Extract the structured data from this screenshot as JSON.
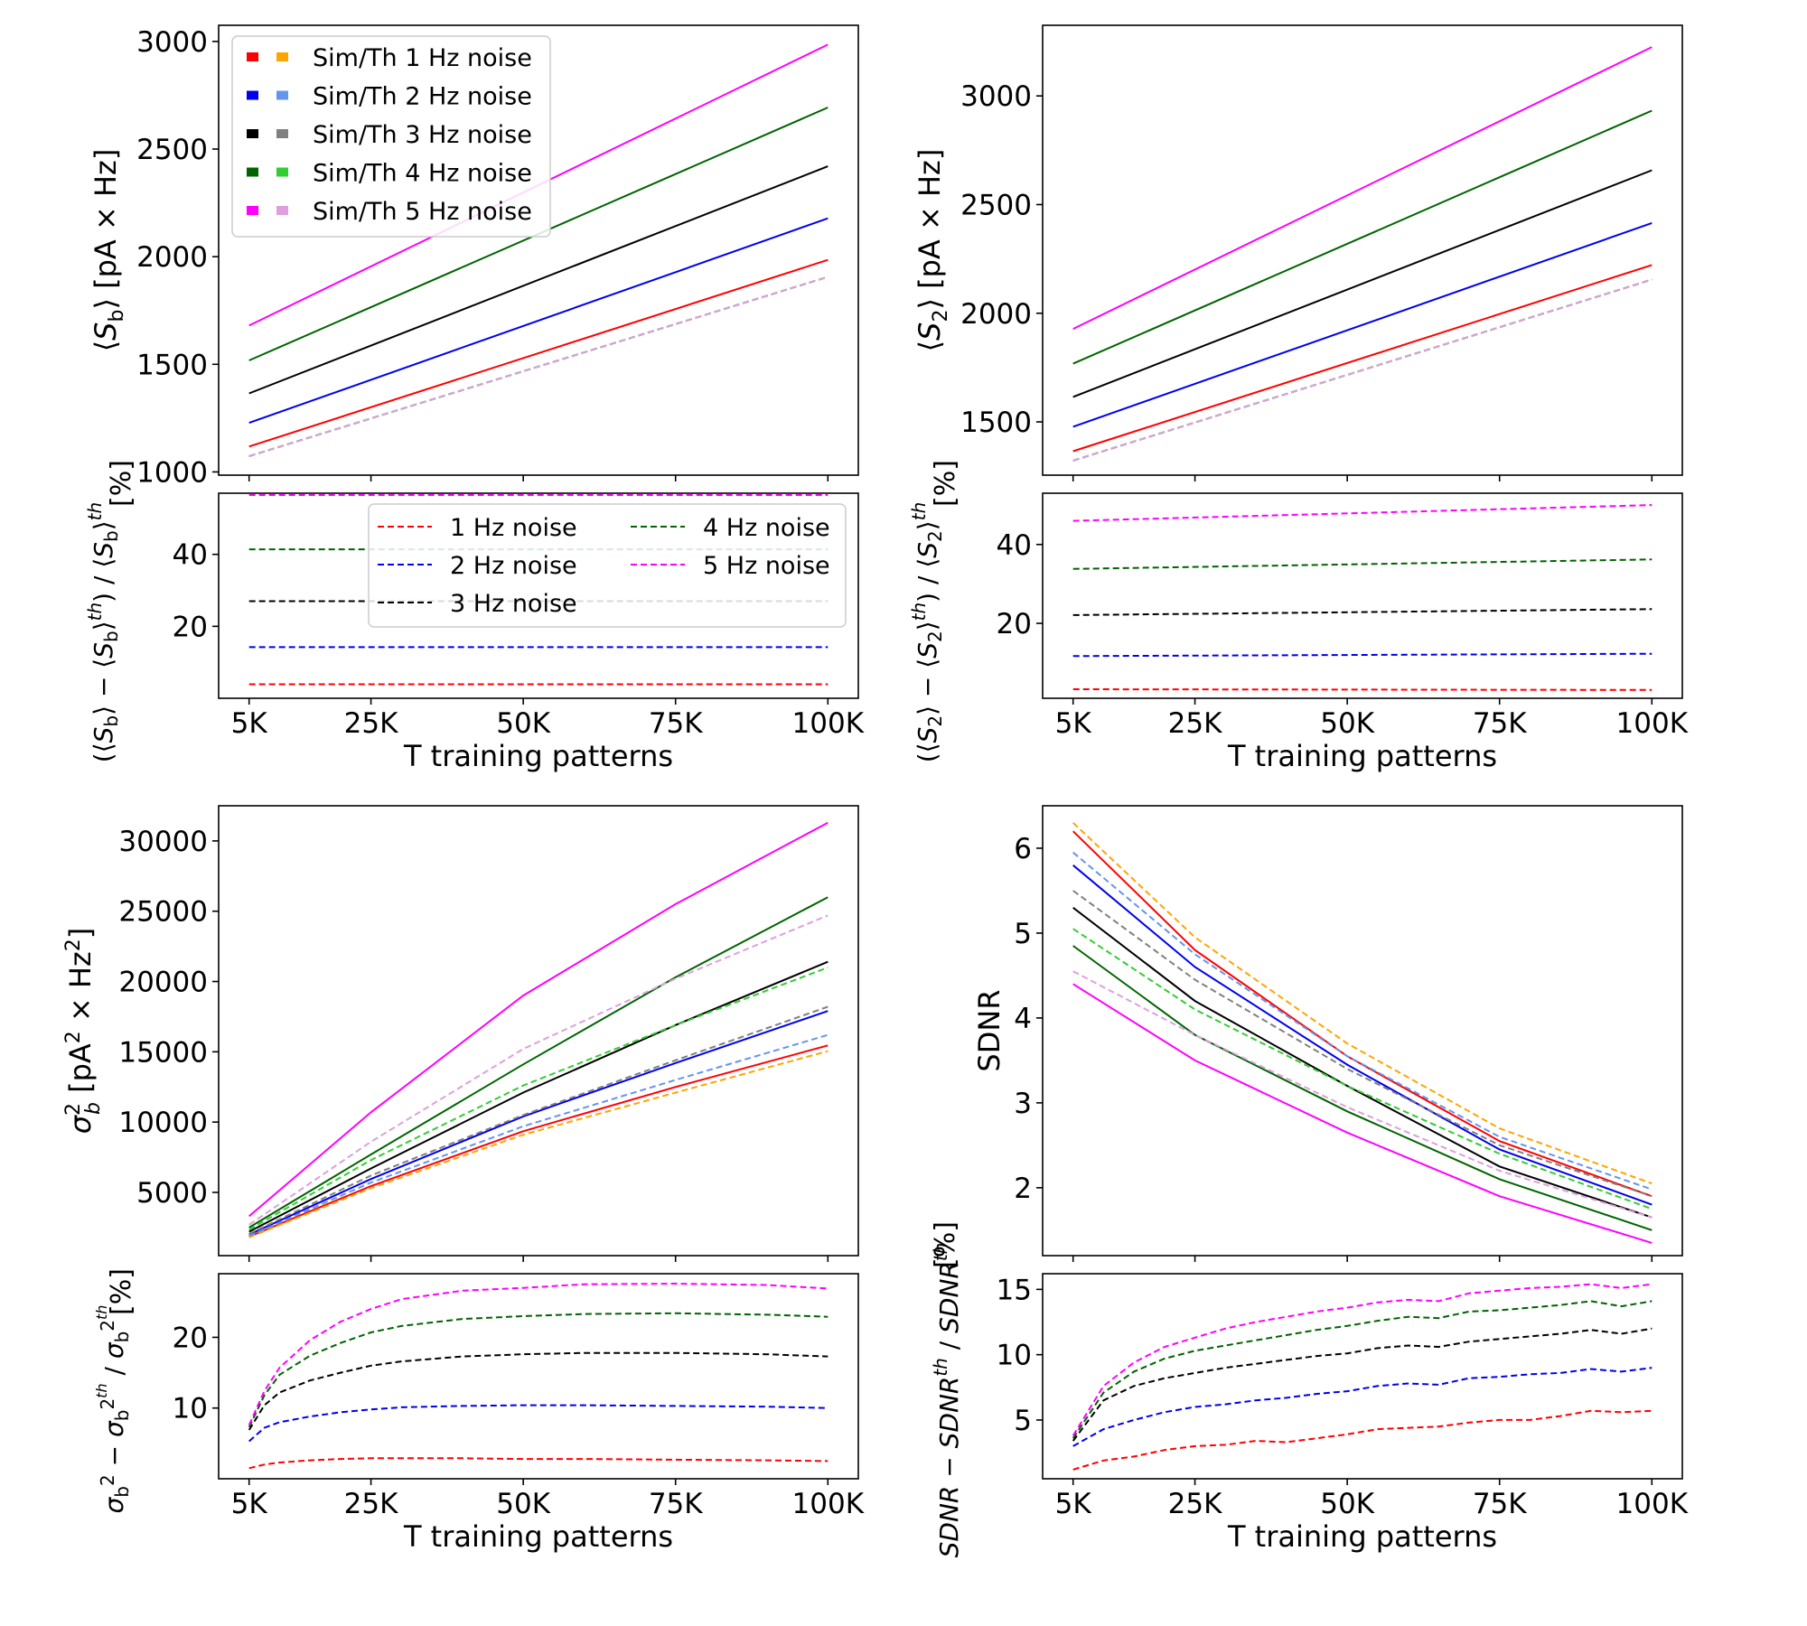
{
  "figure": {
    "xlabel": "T training patterns",
    "xticks": [
      "5K",
      "25K",
      "50K",
      "75K",
      "100K"
    ],
    "xtick_values": [
      5000,
      25000,
      50000,
      75000,
      100000
    ],
    "pct_unit": "[%]"
  },
  "legends": {
    "main_entries": [
      "Sim/Th 1 Hz noise",
      "Sim/Th 2 Hz noise",
      "Sim/Th 3 Hz noise",
      "Sim/Th 4 Hz noise",
      "Sim/Th 5 Hz noise"
    ],
    "main_sim_colors": [
      "#ff0000",
      "#0000ee",
      "#000000",
      "#006400",
      "#ff00ff"
    ],
    "main_th_colors": [
      "#ffa500",
      "#6495ed",
      "#808080",
      "#32cd32",
      "#dda0dd"
    ],
    "rel_entries": [
      "1 Hz noise",
      "2 Hz noise",
      "3 Hz noise",
      "4 Hz noise",
      "5 Hz noise"
    ],
    "rel_colors": [
      "#ff0000",
      "#0000ee",
      "#000000",
      "#006400",
      "#ff00ff"
    ]
  },
  "chart_data": [
    {
      "id": "sb_mean",
      "type": "line",
      "ylabel": "⟨S_b⟩ [pA × Hz]",
      "ylabel_parts": {
        "open": "⟨",
        "sym": "S",
        "sub": "b",
        "close": "⟩ [pA × Hz]"
      },
      "xlim": [
        0,
        105000
      ],
      "ylim": [
        985,
        3075
      ],
      "yticks": [
        1000,
        1500,
        2000,
        2500,
        3000
      ],
      "x": [
        5000,
        100000
      ],
      "series": [
        {
          "name": "Sim 1 Hz noise",
          "color": "#ff0000",
          "dash": false,
          "y": [
            1118,
            1985
          ]
        },
        {
          "name": "Sim 2 Hz noise",
          "color": "#0000ee",
          "dash": false,
          "y": [
            1228,
            2178
          ]
        },
        {
          "name": "Sim 3 Hz noise",
          "color": "#000000",
          "dash": false,
          "y": [
            1365,
            2420
          ]
        },
        {
          "name": "Sim 4 Hz noise",
          "color": "#006400",
          "dash": false,
          "y": [
            1518,
            2693
          ]
        },
        {
          "name": "Sim 5 Hz noise",
          "color": "#ff00ff",
          "dash": false,
          "y": [
            1680,
            2985
          ]
        },
        {
          "name": "Th 1 Hz noise",
          "color": "#ffa500",
          "dash": true,
          "y": [
            1073,
            1906
          ]
        },
        {
          "name": "Th 2 Hz noise",
          "color": "#6495ed",
          "dash": true,
          "y": [
            1073,
            1906
          ]
        },
        {
          "name": "Th 3 Hz noise",
          "color": "#808080",
          "dash": true,
          "y": [
            1073,
            1906
          ]
        },
        {
          "name": "Th 4 Hz noise",
          "color": "#32cd32",
          "dash": true,
          "y": [
            1073,
            1906
          ]
        },
        {
          "name": "Th 5 Hz noise",
          "color": "#dda0dd",
          "dash": true,
          "y": [
            1073,
            1906
          ]
        }
      ]
    },
    {
      "id": "sb_rel",
      "type": "line",
      "ylabel": "(⟨S_b⟩ − ⟨S_b⟩^th) / ⟨S_b⟩^th",
      "ylim": [
        0,
        57
      ],
      "yticks": [
        20,
        40
      ],
      "x": [
        5000,
        100000
      ],
      "series": [
        {
          "name": "1 Hz noise",
          "color": "#ff0000",
          "y": [
            3.9,
            3.9
          ]
        },
        {
          "name": "2 Hz noise",
          "color": "#0000ee",
          "y": [
            14.2,
            14.2
          ]
        },
        {
          "name": "3 Hz noise",
          "color": "#000000",
          "y": [
            27.0,
            27.0
          ]
        },
        {
          "name": "4 Hz noise",
          "color": "#006400",
          "y": [
            41.4,
            41.4
          ]
        },
        {
          "name": "5 Hz noise",
          "color": "#ff00ff",
          "y": [
            56.5,
            56.5
          ]
        }
      ]
    },
    {
      "id": "s2_mean",
      "type": "line",
      "ylabel": "⟨S_2⟩ [pA × Hz]",
      "ylabel_parts": {
        "open": "⟨",
        "sym": "S",
        "sub": "2",
        "close": "⟩ [pA × Hz]"
      },
      "xlim": [
        0,
        105000
      ],
      "ylim": [
        1255,
        3325
      ],
      "yticks": [
        1500,
        2000,
        2500,
        3000
      ],
      "x": [
        5000,
        100000
      ],
      "series": [
        {
          "name": "Sim 1 Hz noise",
          "color": "#ff0000",
          "dash": false,
          "y": [
            1365,
            2222
          ]
        },
        {
          "name": "Sim 2 Hz noise",
          "color": "#0000ee",
          "dash": false,
          "y": [
            1478,
            2415
          ]
        },
        {
          "name": "Sim 3 Hz noise",
          "color": "#000000",
          "dash": false,
          "y": [
            1615,
            2658
          ]
        },
        {
          "name": "Sim 4 Hz noise",
          "color": "#006400",
          "dash": false,
          "y": [
            1768,
            2932
          ]
        },
        {
          "name": "Sim 5 Hz noise",
          "color": "#ff00ff",
          "dash": false,
          "y": [
            1928,
            3225
          ]
        },
        {
          "name": "Th 1 Hz noise",
          "color": "#ffa500",
          "dash": true,
          "y": [
            1322,
            2155
          ]
        },
        {
          "name": "Th 2 Hz noise",
          "color": "#6495ed",
          "dash": true,
          "y": [
            1322,
            2155
          ]
        },
        {
          "name": "Th 3 Hz noise",
          "color": "#808080",
          "dash": true,
          "y": [
            1322,
            2155
          ]
        },
        {
          "name": "Th 4 Hz noise",
          "color": "#32cd32",
          "dash": true,
          "y": [
            1322,
            2155
          ]
        },
        {
          "name": "Th 5 Hz noise",
          "color": "#dda0dd",
          "dash": true,
          "y": [
            1322,
            2155
          ]
        }
      ]
    },
    {
      "id": "s2_rel",
      "type": "line",
      "ylabel": "(⟨S_2⟩ − ⟨S_2⟩^th) / ⟨S_2⟩^th",
      "ylim": [
        1,
        53
      ],
      "yticks": [
        20,
        40
      ],
      "x": [
        5000,
        100000
      ],
      "series": [
        {
          "name": "1 Hz noise",
          "color": "#ff0000",
          "y": [
            3.3,
            3.1
          ]
        },
        {
          "name": "2 Hz noise",
          "color": "#0000ee",
          "y": [
            11.7,
            12.3
          ]
        },
        {
          "name": "3 Hz noise",
          "color": "#000000",
          "y": [
            22.1,
            23.6
          ]
        },
        {
          "name": "4 Hz noise",
          "color": "#006400",
          "y": [
            33.8,
            36.2
          ]
        },
        {
          "name": "5 Hz noise",
          "color": "#ff00ff",
          "y": [
            46.0,
            50.0
          ]
        }
      ]
    },
    {
      "id": "sigma_b2",
      "type": "line",
      "ylabel": "σ_b² [pA² × Hz²]",
      "ylim": [
        500,
        32500
      ],
      "yticks": [
        5000,
        10000,
        15000,
        20000,
        25000,
        30000
      ],
      "x": [
        5000,
        25000,
        50000,
        75000,
        100000
      ],
      "series": [
        {
          "name": "Sim 1 Hz noise",
          "color": "#ff0000",
          "dash": false,
          "y": [
            1850,
            5450,
            9350,
            12500,
            15450
          ]
        },
        {
          "name": "Sim 2 Hz noise",
          "color": "#0000ee",
          "dash": false,
          "y": [
            2000,
            5950,
            10400,
            14200,
            17900
          ]
        },
        {
          "name": "Sim 3 Hz noise",
          "color": "#000000",
          "dash": false,
          "y": [
            2200,
            6700,
            12100,
            16900,
            21400
          ]
        },
        {
          "name": "Sim 4 Hz noise",
          "color": "#006400",
          "dash": false,
          "y": [
            2500,
            7700,
            14100,
            20300,
            26000
          ]
        },
        {
          "name": "Sim 5 Hz noise",
          "color": "#ff00ff",
          "dash": false,
          "y": [
            3300,
            10700,
            19000,
            25500,
            31300
          ]
        },
        {
          "name": "Th 1 Hz noise",
          "color": "#ffa500",
          "dash": true,
          "y": [
            1800,
            5300,
            9100,
            12100,
            15050
          ]
        },
        {
          "name": "Th 2 Hz noise",
          "color": "#6495ed",
          "dash": true,
          "y": [
            1900,
            5700,
            9700,
            13000,
            16200
          ]
        },
        {
          "name": "Th 3 Hz noise",
          "color": "#808080",
          "dash": true,
          "y": [
            2050,
            6200,
            10500,
            14400,
            18200
          ]
        },
        {
          "name": "Th 4 Hz noise",
          "color": "#32cd32",
          "dash": true,
          "y": [
            2350,
            7300,
            12600,
            16900,
            21000
          ]
        },
        {
          "name": "Th 5 Hz noise",
          "color": "#dda0dd",
          "dash": true,
          "y": [
            2700,
            8600,
            15200,
            20200,
            24700
          ]
        }
      ]
    },
    {
      "id": "sigma_rel",
      "type": "line",
      "ylabel": "(σ_b² − σ_b²^th) / σ_b²^th",
      "ylim": [
        0,
        29
      ],
      "yticks": [
        10,
        20
      ],
      "x": [
        5000,
        7500,
        10000,
        15000,
        20000,
        25000,
        30000,
        40000,
        50000,
        60000,
        75000,
        90000,
        100000
      ],
      "series": [
        {
          "name": "1 Hz noise",
          "color": "#ff0000",
          "y": [
            1.5,
            2.0,
            2.3,
            2.6,
            2.8,
            2.9,
            2.9,
            2.9,
            2.8,
            2.8,
            2.7,
            2.6,
            2.5
          ]
        },
        {
          "name": "2 Hz noise",
          "color": "#0000ee",
          "y": [
            5.3,
            7.2,
            8.0,
            8.8,
            9.4,
            9.8,
            10.1,
            10.3,
            10.4,
            10.4,
            10.3,
            10.2,
            10.0
          ]
        },
        {
          "name": "3 Hz noise",
          "color": "#000000",
          "y": [
            6.9,
            10.4,
            12.2,
            13.9,
            15.0,
            16.0,
            16.6,
            17.3,
            17.6,
            17.8,
            17.8,
            17.6,
            17.3
          ]
        },
        {
          "name": "4 Hz noise",
          "color": "#006400",
          "y": [
            7.3,
            11.8,
            14.7,
            17.4,
            19.2,
            20.7,
            21.6,
            22.6,
            23.0,
            23.3,
            23.4,
            23.2,
            22.9
          ]
        },
        {
          "name": "5 Hz noise",
          "color": "#ff00ff",
          "y": [
            7.6,
            12.4,
            15.7,
            19.6,
            22.2,
            24.0,
            25.4,
            26.6,
            27.0,
            27.5,
            27.6,
            27.4,
            26.9
          ]
        }
      ]
    },
    {
      "id": "sdnr",
      "type": "line",
      "ylabel": "SDNR",
      "ylim": [
        1.2,
        6.5
      ],
      "yticks": [
        2,
        3,
        4,
        5,
        6
      ],
      "x": [
        5000,
        25000,
        50000,
        75000,
        100000
      ],
      "series": [
        {
          "name": "Sim 1 Hz noise",
          "color": "#ff0000",
          "dash": false,
          "y": [
            6.2,
            4.8,
            3.55,
            2.55,
            1.9
          ]
        },
        {
          "name": "Sim 2 Hz noise",
          "color": "#0000ee",
          "dash": false,
          "y": [
            5.8,
            4.6,
            3.45,
            2.45,
            1.8
          ]
        },
        {
          "name": "Sim 3 Hz noise",
          "color": "#000000",
          "dash": false,
          "y": [
            5.3,
            4.2,
            3.2,
            2.25,
            1.65
          ]
        },
        {
          "name": "Sim 4 Hz noise",
          "color": "#006400",
          "dash": false,
          "y": [
            4.85,
            3.8,
            2.9,
            2.1,
            1.5
          ]
        },
        {
          "name": "Sim 5 Hz noise",
          "color": "#ff00ff",
          "dash": false,
          "y": [
            4.4,
            3.5,
            2.65,
            1.9,
            1.35
          ]
        },
        {
          "name": "Th 1 Hz noise",
          "color": "#ffa500",
          "dash": true,
          "y": [
            6.3,
            4.95,
            3.7,
            2.7,
            2.05
          ]
        },
        {
          "name": "Th 2 Hz noise",
          "color": "#6495ed",
          "dash": true,
          "y": [
            5.95,
            4.75,
            3.55,
            2.6,
            1.98
          ]
        },
        {
          "name": "Th 3 Hz noise",
          "color": "#808080",
          "dash": true,
          "y": [
            5.5,
            4.45,
            3.4,
            2.5,
            1.9
          ]
        },
        {
          "name": "Th 4 Hz noise",
          "color": "#32cd32",
          "dash": true,
          "y": [
            5.05,
            4.1,
            3.2,
            2.4,
            1.75
          ]
        },
        {
          "name": "Th 5 Hz noise",
          "color": "#dda0dd",
          "dash": true,
          "y": [
            4.55,
            3.8,
            2.95,
            2.2,
            1.65
          ]
        }
      ]
    },
    {
      "id": "sdnr_rel",
      "type": "line",
      "ylabel": "(SDNR − SDNR^th) / SDNR^th",
      "ylim": [
        0.5,
        16.2
      ],
      "yticks": [
        5,
        10,
        15
      ],
      "x": [
        5000,
        10000,
        15000,
        20000,
        25000,
        30000,
        35000,
        40000,
        45000,
        50000,
        55000,
        60000,
        65000,
        70000,
        75000,
        80000,
        85000,
        90000,
        95000,
        100000
      ],
      "series": [
        {
          "name": "1 Hz noise",
          "color": "#ff0000",
          "y": [
            1.2,
            1.9,
            2.2,
            2.7,
            3.0,
            3.1,
            3.4,
            3.3,
            3.6,
            3.9,
            4.3,
            4.4,
            4.5,
            4.8,
            5.0,
            5.0,
            5.3,
            5.7,
            5.6,
            5.7
          ]
        },
        {
          "name": "2 Hz noise",
          "color": "#0000ee",
          "y": [
            3.0,
            4.3,
            5.0,
            5.6,
            6.0,
            6.2,
            6.5,
            6.7,
            7.0,
            7.2,
            7.6,
            7.8,
            7.7,
            8.2,
            8.3,
            8.5,
            8.6,
            8.9,
            8.7,
            9.0
          ]
        },
        {
          "name": "3 Hz noise",
          "color": "#000000",
          "y": [
            3.4,
            6.5,
            7.6,
            8.2,
            8.6,
            9.0,
            9.3,
            9.6,
            9.9,
            10.1,
            10.5,
            10.7,
            10.6,
            11.0,
            11.2,
            11.4,
            11.6,
            11.9,
            11.6,
            12.0
          ]
        },
        {
          "name": "4 Hz noise",
          "color": "#006400",
          "y": [
            3.6,
            7.1,
            8.7,
            9.7,
            10.3,
            10.7,
            11.1,
            11.5,
            11.9,
            12.2,
            12.6,
            12.9,
            12.8,
            13.3,
            13.4,
            13.6,
            13.8,
            14.1,
            13.7,
            14.1
          ]
        },
        {
          "name": "5 Hz noise",
          "color": "#ff00ff",
          "y": [
            3.8,
            7.6,
            9.4,
            10.6,
            11.3,
            12.0,
            12.5,
            12.9,
            13.3,
            13.6,
            14.0,
            14.2,
            14.1,
            14.7,
            14.9,
            15.1,
            15.2,
            15.4,
            15.1,
            15.4
          ]
        }
      ]
    }
  ]
}
